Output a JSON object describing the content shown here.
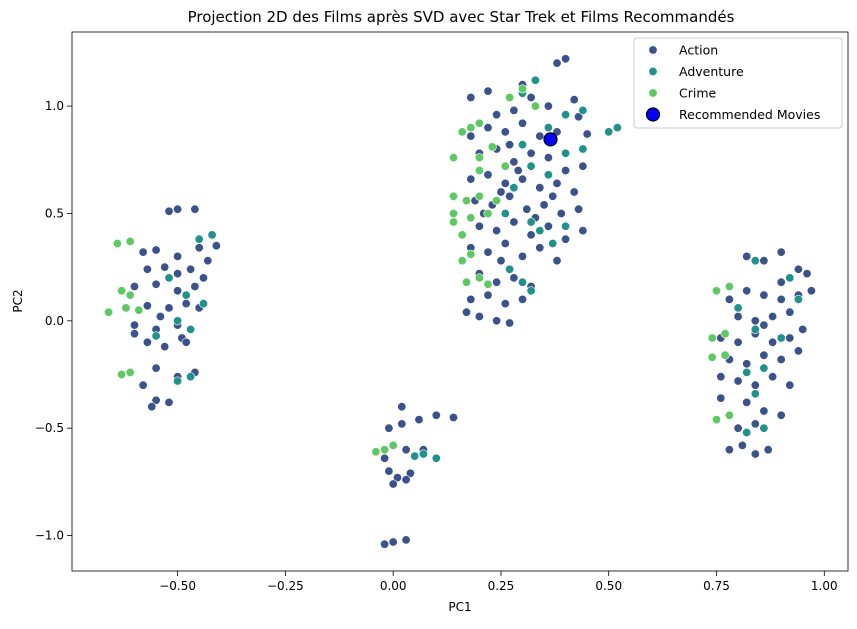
{
  "chart_data": {
    "type": "scatter",
    "title": "Projection 2D des Films après SVD avec Star Trek et Films Recommandés",
    "xlabel": "PC1",
    "ylabel": "PC2",
    "xlim": [
      -0.745,
      1.055
    ],
    "ylim": [
      -1.165,
      1.345
    ],
    "xticks": [
      -0.5,
      -0.25,
      0.0,
      0.25,
      0.5,
      0.75,
      1.0
    ],
    "xtick_labels": [
      "−0.50",
      "−0.25",
      "0.00",
      "0.25",
      "0.50",
      "0.75",
      "1.00"
    ],
    "yticks": [
      -1.0,
      -0.5,
      0.0,
      0.5,
      1.0
    ],
    "ytick_labels": [
      "−1.0",
      "−0.5",
      "0.0",
      "0.5",
      "1.0"
    ],
    "grid": false,
    "legend_position": "top-right",
    "colors": {
      "Action": "#3b528b",
      "Adventure": "#21918c",
      "Crime": "#5ec962",
      "Recommended Movies": "#0000ff"
    },
    "series": [
      {
        "name": "Action",
        "points": [
          [
            -0.52,
            0.51
          ],
          [
            -0.5,
            0.52
          ],
          [
            -0.46,
            0.52
          ],
          [
            -0.55,
            0.33
          ],
          [
            -0.5,
            0.3
          ],
          [
            -0.45,
            0.34
          ],
          [
            -0.41,
            0.35
          ],
          [
            -0.57,
            0.24
          ],
          [
            -0.53,
            0.25
          ],
          [
            -0.47,
            0.24
          ],
          [
            -0.44,
            0.2
          ],
          [
            -0.6,
            0.16
          ],
          [
            -0.55,
            0.17
          ],
          [
            -0.5,
            0.14
          ],
          [
            -0.46,
            0.16
          ],
          [
            -0.57,
            0.07
          ],
          [
            -0.52,
            0.06
          ],
          [
            -0.48,
            0.08
          ],
          [
            -0.45,
            0.06
          ],
          [
            -0.6,
            -0.02
          ],
          [
            -0.55,
            -0.04
          ],
          [
            -0.5,
            -0.02
          ],
          [
            -0.57,
            -0.1
          ],
          [
            -0.53,
            -0.12
          ],
          [
            -0.49,
            -0.08
          ],
          [
            -0.55,
            -0.22
          ],
          [
            -0.5,
            -0.26
          ],
          [
            -0.46,
            -0.24
          ],
          [
            -0.58,
            -0.3
          ],
          [
            -0.55,
            -0.37
          ],
          [
            -0.52,
            -0.38
          ],
          [
            -0.56,
            -0.4
          ],
          [
            -0.6,
            -0.06
          ],
          [
            -0.54,
            0.02
          ],
          [
            -0.48,
            -0.1
          ],
          [
            -0.5,
            0.22
          ],
          [
            -0.43,
            0.28
          ],
          [
            -0.58,
            0.32
          ],
          [
            -0.02,
            -1.04
          ],
          [
            0.0,
            -1.03
          ],
          [
            0.03,
            -1.02
          ],
          [
            0.02,
            -0.4
          ],
          [
            0.06,
            -0.46
          ],
          [
            0.1,
            -0.44
          ],
          [
            0.14,
            -0.45
          ],
          [
            -0.01,
            -0.5
          ],
          [
            0.02,
            -0.48
          ],
          [
            -0.02,
            -0.64
          ],
          [
            0.03,
            -0.6
          ],
          [
            0.07,
            -0.6
          ],
          [
            -0.01,
            -0.7
          ],
          [
            0.01,
            -0.73
          ],
          [
            0.04,
            -0.71
          ],
          [
            0.0,
            -0.76
          ],
          [
            0.03,
            -0.74
          ],
          [
            0.18,
            1.04
          ],
          [
            0.22,
            1.07
          ],
          [
            0.3,
            1.1
          ],
          [
            0.38,
            1.2
          ],
          [
            0.4,
            1.22
          ],
          [
            0.24,
            0.96
          ],
          [
            0.28,
            0.98
          ],
          [
            0.32,
            1.04
          ],
          [
            0.36,
            1.0
          ],
          [
            0.42,
            1.03
          ],
          [
            0.43,
            0.95
          ],
          [
            0.18,
            0.86
          ],
          [
            0.22,
            0.9
          ],
          [
            0.26,
            0.88
          ],
          [
            0.3,
            0.92
          ],
          [
            0.34,
            0.86
          ],
          [
            0.38,
            0.88
          ],
          [
            0.45,
            0.87
          ],
          [
            0.2,
            0.78
          ],
          [
            0.24,
            0.8
          ],
          [
            0.28,
            0.74
          ],
          [
            0.32,
            0.78
          ],
          [
            0.36,
            0.76
          ],
          [
            0.4,
            0.7
          ],
          [
            0.44,
            0.72
          ],
          [
            0.18,
            0.66
          ],
          [
            0.22,
            0.68
          ],
          [
            0.26,
            0.64
          ],
          [
            0.3,
            0.66
          ],
          [
            0.34,
            0.62
          ],
          [
            0.38,
            0.64
          ],
          [
            0.42,
            0.6
          ],
          [
            0.19,
            0.56
          ],
          [
            0.23,
            0.54
          ],
          [
            0.27,
            0.58
          ],
          [
            0.31,
            0.52
          ],
          [
            0.35,
            0.54
          ],
          [
            0.39,
            0.5
          ],
          [
            0.43,
            0.52
          ],
          [
            0.2,
            0.44
          ],
          [
            0.24,
            0.42
          ],
          [
            0.28,
            0.46
          ],
          [
            0.32,
            0.4
          ],
          [
            0.36,
            0.44
          ],
          [
            0.4,
            0.38
          ],
          [
            0.44,
            0.42
          ],
          [
            0.18,
            0.34
          ],
          [
            0.22,
            0.32
          ],
          [
            0.26,
            0.36
          ],
          [
            0.3,
            0.3
          ],
          [
            0.34,
            0.34
          ],
          [
            0.38,
            0.28
          ],
          [
            0.2,
            0.22
          ],
          [
            0.24,
            0.18
          ],
          [
            0.28,
            0.2
          ],
          [
            0.32,
            0.16
          ],
          [
            0.18,
            0.1
          ],
          [
            0.22,
            0.12
          ],
          [
            0.26,
            0.08
          ],
          [
            0.3,
            0.1
          ],
          [
            0.17,
            0.04
          ],
          [
            0.2,
            0.02
          ],
          [
            0.24,
            0.0
          ],
          [
            0.27,
            -0.01
          ],
          [
            0.25,
            0.6
          ],
          [
            0.29,
            0.7
          ],
          [
            0.33,
            0.48
          ],
          [
            0.21,
            0.5
          ],
          [
            0.37,
            0.58
          ],
          [
            0.27,
            0.82
          ],
          [
            0.25,
            0.28
          ],
          [
            0.82,
            0.3
          ],
          [
            0.86,
            0.28
          ],
          [
            0.9,
            0.32
          ],
          [
            0.94,
            0.24
          ],
          [
            0.78,
            0.1
          ],
          [
            0.82,
            0.14
          ],
          [
            0.86,
            0.12
          ],
          [
            0.9,
            0.1
          ],
          [
            0.94,
            0.12
          ],
          [
            0.97,
            0.14
          ],
          [
            0.8,
            0.02
          ],
          [
            0.84,
            0.0
          ],
          [
            0.88,
            0.02
          ],
          [
            0.92,
            0.04
          ],
          [
            0.76,
            -0.08
          ],
          [
            0.8,
            -0.1
          ],
          [
            0.84,
            -0.06
          ],
          [
            0.88,
            -0.1
          ],
          [
            0.92,
            -0.08
          ],
          [
            0.95,
            -0.04
          ],
          [
            0.78,
            -0.18
          ],
          [
            0.82,
            -0.2
          ],
          [
            0.86,
            -0.16
          ],
          [
            0.9,
            -0.18
          ],
          [
            0.94,
            -0.14
          ],
          [
            0.76,
            -0.26
          ],
          [
            0.8,
            -0.28
          ],
          [
            0.84,
            -0.3
          ],
          [
            0.88,
            -0.26
          ],
          [
            0.92,
            -0.3
          ],
          [
            0.82,
            -0.38
          ],
          [
            0.86,
            -0.42
          ],
          [
            0.9,
            -0.44
          ],
          [
            0.78,
            -0.6
          ],
          [
            0.81,
            -0.58
          ],
          [
            0.84,
            -0.62
          ],
          [
            0.87,
            -0.6
          ],
          [
            0.8,
            -0.5
          ],
          [
            0.84,
            -0.48
          ],
          [
            0.76,
            -0.36
          ],
          [
            0.86,
            -0.02
          ],
          [
            0.9,
            0.18
          ],
          [
            0.96,
            0.22
          ]
        ]
      },
      {
        "name": "Adventure",
        "points": [
          [
            -0.45,
            0.38
          ],
          [
            -0.42,
            0.4
          ],
          [
            -0.52,
            0.2
          ],
          [
            -0.48,
            0.12
          ],
          [
            -0.44,
            0.08
          ],
          [
            -0.5,
            0.0
          ],
          [
            -0.47,
            -0.04
          ],
          [
            -0.5,
            -0.28
          ],
          [
            -0.47,
            -0.26
          ],
          [
            -0.55,
            -0.07
          ],
          [
            0.05,
            -0.63
          ],
          [
            0.07,
            -0.62
          ],
          [
            0.1,
            -0.64
          ],
          [
            0.5,
            0.88
          ],
          [
            0.52,
            0.9
          ],
          [
            0.4,
            0.96
          ],
          [
            0.44,
            0.98
          ],
          [
            0.36,
            0.9
          ],
          [
            0.4,
            0.78
          ],
          [
            0.44,
            0.8
          ],
          [
            0.3,
            0.82
          ],
          [
            0.32,
            0.72
          ],
          [
            0.36,
            0.68
          ],
          [
            0.28,
            0.62
          ],
          [
            0.26,
            0.5
          ],
          [
            0.32,
            0.46
          ],
          [
            0.4,
            0.44
          ],
          [
            0.37,
            0.36
          ],
          [
            0.34,
            0.42
          ],
          [
            0.27,
            0.24
          ],
          [
            0.3,
            0.18
          ],
          [
            0.32,
            0.14
          ],
          [
            0.3,
            1.06
          ],
          [
            0.33,
            1.12
          ],
          [
            0.84,
            0.28
          ],
          [
            0.92,
            0.2
          ],
          [
            0.94,
            0.1
          ],
          [
            0.8,
            0.06
          ],
          [
            0.84,
            -0.04
          ],
          [
            0.9,
            -0.08
          ],
          [
            0.86,
            -0.22
          ],
          [
            0.82,
            -0.24
          ],
          [
            0.84,
            -0.34
          ],
          [
            0.82,
            -0.52
          ],
          [
            0.86,
            -0.5
          ]
        ]
      },
      {
        "name": "Crime",
        "points": [
          [
            -0.64,
            0.36
          ],
          [
            -0.61,
            0.37
          ],
          [
            -0.63,
            0.14
          ],
          [
            -0.61,
            0.12
          ],
          [
            -0.66,
            0.04
          ],
          [
            -0.62,
            0.06
          ],
          [
            -0.59,
            0.05
          ],
          [
            -0.63,
            -0.25
          ],
          [
            -0.61,
            -0.24
          ],
          [
            -0.04,
            -0.61
          ],
          [
            -0.02,
            -0.6
          ],
          [
            0.0,
            -0.58
          ],
          [
            0.16,
            0.88
          ],
          [
            0.18,
            0.9
          ],
          [
            0.2,
            0.92
          ],
          [
            0.2,
            0.76
          ],
          [
            0.23,
            0.81
          ],
          [
            0.26,
            0.72
          ],
          [
            0.14,
            0.76
          ],
          [
            0.2,
            0.7
          ],
          [
            0.14,
            0.58
          ],
          [
            0.17,
            0.56
          ],
          [
            0.2,
            0.58
          ],
          [
            0.14,
            0.5
          ],
          [
            0.18,
            0.48
          ],
          [
            0.22,
            0.5
          ],
          [
            0.14,
            0.46
          ],
          [
            0.24,
            0.56
          ],
          [
            0.16,
            0.28
          ],
          [
            0.18,
            0.31
          ],
          [
            0.17,
            0.18
          ],
          [
            0.2,
            0.2
          ],
          [
            0.22,
            0.17
          ],
          [
            0.16,
            0.4
          ],
          [
            0.27,
            1.04
          ],
          [
            0.3,
            1.08
          ],
          [
            0.33,
            1.0
          ],
          [
            0.75,
            0.14
          ],
          [
            0.78,
            0.16
          ],
          [
            0.74,
            -0.08
          ],
          [
            0.77,
            -0.06
          ],
          [
            0.74,
            -0.17
          ],
          [
            0.77,
            -0.16
          ],
          [
            0.75,
            -0.46
          ],
          [
            0.78,
            -0.44
          ]
        ]
      },
      {
        "name": "Recommended Movies",
        "points": [
          [
            0.365,
            0.845
          ]
        ]
      }
    ]
  }
}
